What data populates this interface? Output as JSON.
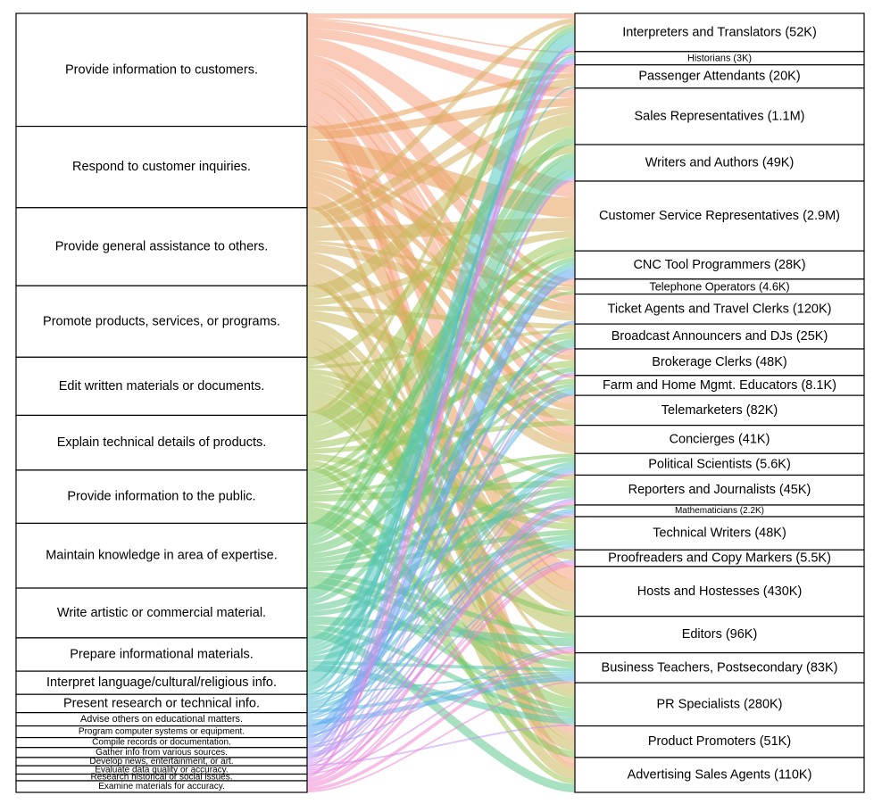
{
  "chart_data": {
    "type": "sankey",
    "sources": [
      {
        "label": "Provide information to customers.",
        "color": "#f7a07f"
      },
      {
        "label": "Respond to customer inquiries.",
        "color": "#e8a05a"
      },
      {
        "label": "Provide general assistance to others.",
        "color": "#d6b060"
      },
      {
        "label": "Promote products, services, or programs.",
        "color": "#c9b85c"
      },
      {
        "label": "Edit written materials or documents.",
        "color": "#b7bf5a"
      },
      {
        "label": "Explain technical details of products.",
        "color": "#9fc65a"
      },
      {
        "label": "Provide information to the public.",
        "color": "#86c95e"
      },
      {
        "label": "Maintain knowledge in area of expertise.",
        "color": "#6cc877"
      },
      {
        "label": "Write artistic or commercial material.",
        "color": "#5ec98f"
      },
      {
        "label": "Prepare informational materials.",
        "color": "#55c8a8"
      },
      {
        "label": "Interpret language/cultural/religious info.",
        "color": "#56c6c0"
      },
      {
        "label": "Present research or technical info.",
        "color": "#5abfd4"
      },
      {
        "label": "Advise others on educational matters.",
        "color": "#5cb5e6"
      },
      {
        "label": "Program computer systems or equipment.",
        "color": "#5fa8f0"
      },
      {
        "label": "Compile records or documentation.",
        "color": "#8aa6f5"
      },
      {
        "label": "Gather info from various sources.",
        "color": "#a79cf6"
      },
      {
        "label": "Develop news, entertainment, or art.",
        "color": "#c493f3"
      },
      {
        "label": "Evaluate data quality or accuracy.",
        "color": "#dd8aea"
      },
      {
        "label": "Research historical or social issues.",
        "color": "#ec86dc"
      },
      {
        "label": "Examine materials for accuracy.",
        "color": "#f088cf"
      }
    ],
    "targets": [
      "Interpreters and Translators (52K)",
      "Historians (3K)",
      "Passenger Attendants (20K)",
      "Sales Representatives (1.1M)",
      "Writers and Authors (49K)",
      "Customer Service Representatives (2.9M)",
      "CNC Tool Programmers (28K)",
      "Telephone Operators (4.6K)",
      "Ticket Agents and Travel Clerks (120K)",
      "Broadcast Announcers and DJs (25K)",
      "Brokerage Clerks (48K)",
      "Farm and Home Mgmt. Educators (8.1K)",
      "Telemarketers (82K)",
      "Concierges (41K)",
      "Political Scientists (5.6K)",
      "Reporters and Journalists (45K)",
      "Mathematicians (2.2K)",
      "Technical Writers (48K)",
      "Proofreaders and Copy Markers (5.5K)",
      "Hosts and Hostesses (430K)",
      "Editors (96K)",
      "Business Teachers, Postsecondary (83K)",
      "PR Specialists (280K)",
      "Product Promoters (51K)",
      "Advertising Sales Agents (110K)"
    ],
    "links": [
      [
        0,
        0,
        3
      ],
      [
        0,
        1,
        1
      ],
      [
        0,
        2,
        5
      ],
      [
        0,
        3,
        6
      ],
      [
        0,
        5,
        10
      ],
      [
        0,
        7,
        3
      ],
      [
        0,
        8,
        6
      ],
      [
        0,
        10,
        4
      ],
      [
        0,
        11,
        2
      ],
      [
        0,
        12,
        5
      ],
      [
        0,
        13,
        6
      ],
      [
        0,
        19,
        8
      ],
      [
        0,
        23,
        5
      ],
      [
        0,
        24,
        4
      ],
      [
        1,
        2,
        3
      ],
      [
        1,
        3,
        5
      ],
      [
        1,
        5,
        12
      ],
      [
        1,
        7,
        2
      ],
      [
        1,
        8,
        5
      ],
      [
        1,
        10,
        3
      ],
      [
        1,
        12,
        4
      ],
      [
        1,
        13,
        5
      ],
      [
        1,
        19,
        7
      ],
      [
        1,
        24,
        3
      ],
      [
        2,
        0,
        3
      ],
      [
        2,
        2,
        5
      ],
      [
        2,
        3,
        4
      ],
      [
        2,
        5,
        8
      ],
      [
        2,
        7,
        2
      ],
      [
        2,
        8,
        5
      ],
      [
        2,
        13,
        6
      ],
      [
        2,
        19,
        8
      ],
      [
        2,
        23,
        4
      ],
      [
        2,
        21,
        2
      ],
      [
        3,
        3,
        8
      ],
      [
        3,
        5,
        4
      ],
      [
        3,
        9,
        3
      ],
      [
        3,
        12,
        6
      ],
      [
        3,
        19,
        4
      ],
      [
        3,
        22,
        6
      ],
      [
        3,
        23,
        6
      ],
      [
        3,
        24,
        6
      ],
      [
        4,
        4,
        5
      ],
      [
        4,
        9,
        2
      ],
      [
        4,
        15,
        3
      ],
      [
        4,
        17,
        4
      ],
      [
        4,
        18,
        6
      ],
      [
        4,
        20,
        10
      ],
      [
        4,
        22,
        3
      ],
      [
        4,
        0,
        2
      ],
      [
        5,
        3,
        7
      ],
      [
        5,
        5,
        5
      ],
      [
        5,
        6,
        4
      ],
      [
        5,
        10,
        4
      ],
      [
        5,
        12,
        3
      ],
      [
        5,
        17,
        4
      ],
      [
        5,
        21,
        3
      ],
      [
        5,
        24,
        3
      ],
      [
        6,
        1,
        1
      ],
      [
        6,
        5,
        3
      ],
      [
        6,
        7,
        2
      ],
      [
        6,
        9,
        4
      ],
      [
        6,
        11,
        3
      ],
      [
        6,
        14,
        2
      ],
      [
        6,
        15,
        4
      ],
      [
        6,
        19,
        3
      ],
      [
        6,
        22,
        6
      ],
      [
        6,
        23,
        4
      ],
      [
        7,
        0,
        3
      ],
      [
        7,
        3,
        4
      ],
      [
        7,
        4,
        3
      ],
      [
        7,
        6,
        3
      ],
      [
        7,
        10,
        3
      ],
      [
        7,
        11,
        2
      ],
      [
        7,
        14,
        3
      ],
      [
        7,
        15,
        3
      ],
      [
        7,
        16,
        2
      ],
      [
        7,
        17,
        3
      ],
      [
        7,
        20,
        3
      ],
      [
        7,
        21,
        4
      ],
      [
        7,
        22,
        3
      ],
      [
        8,
        4,
        7
      ],
      [
        8,
        9,
        3
      ],
      [
        8,
        15,
        4
      ],
      [
        8,
        17,
        3
      ],
      [
        8,
        20,
        5
      ],
      [
        8,
        22,
        3
      ],
      [
        8,
        24,
        5
      ],
      [
        9,
        4,
        3
      ],
      [
        9,
        6,
        2
      ],
      [
        9,
        9,
        2
      ],
      [
        9,
        11,
        2
      ],
      [
        9,
        14,
        2
      ],
      [
        9,
        17,
        3
      ],
      [
        9,
        21,
        2
      ],
      [
        9,
        22,
        4
      ],
      [
        10,
        0,
        8
      ],
      [
        10,
        1,
        1
      ],
      [
        10,
        2,
        1
      ],
      [
        10,
        4,
        2
      ],
      [
        10,
        14,
        1
      ],
      [
        10,
        21,
        1
      ],
      [
        11,
        1,
        1
      ],
      [
        11,
        6,
        2
      ],
      [
        11,
        11,
        1
      ],
      [
        11,
        14,
        2
      ],
      [
        11,
        16,
        1
      ],
      [
        11,
        17,
        2
      ],
      [
        11,
        21,
        2
      ],
      [
        12,
        0,
        1
      ],
      [
        12,
        11,
        2
      ],
      [
        12,
        14,
        1
      ],
      [
        12,
        21,
        3
      ],
      [
        12,
        16,
        1
      ],
      [
        13,
        6,
        5
      ],
      [
        13,
        16,
        1
      ],
      [
        13,
        8,
        1
      ],
      [
        14,
        1,
        1
      ],
      [
        14,
        6,
        1
      ],
      [
        14,
        8,
        1
      ],
      [
        14,
        10,
        1
      ],
      [
        14,
        18,
        1
      ],
      [
        14,
        20,
        1
      ],
      [
        15,
        0,
        1
      ],
      [
        15,
        1,
        1
      ],
      [
        15,
        4,
        1
      ],
      [
        15,
        14,
        1
      ],
      [
        15,
        15,
        1
      ],
      [
        15,
        16,
        1
      ],
      [
        16,
        1,
        1
      ],
      [
        16,
        4,
        1
      ],
      [
        16,
        9,
        1
      ],
      [
        16,
        15,
        1
      ],
      [
        16,
        22,
        1
      ],
      [
        17,
        0,
        1
      ],
      [
        17,
        10,
        1
      ],
      [
        17,
        16,
        1
      ],
      [
        17,
        18,
        1
      ],
      [
        17,
        20,
        1
      ],
      [
        18,
        0,
        1
      ],
      [
        18,
        1,
        1
      ],
      [
        18,
        14,
        1
      ],
      [
        18,
        15,
        1
      ],
      [
        19,
        15,
        1
      ],
      [
        19,
        17,
        1
      ],
      [
        19,
        18,
        2
      ],
      [
        19,
        20,
        2
      ],
      [
        19,
        21,
        1
      ]
    ]
  }
}
